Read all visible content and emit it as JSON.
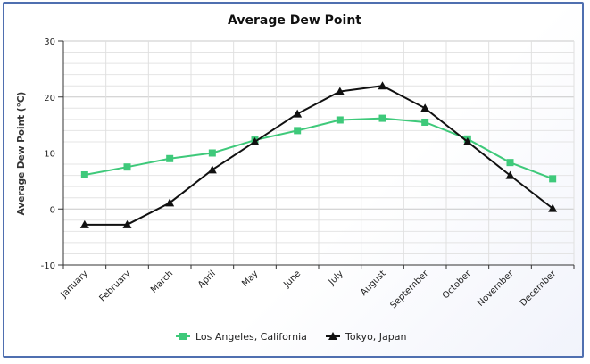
{
  "chart_data": {
    "type": "line",
    "title": "Average Dew Point",
    "xlabel": "",
    "ylabel": "Average Dew Point (°C)",
    "categories": [
      "January",
      "February",
      "March",
      "April",
      "May",
      "June",
      "July",
      "August",
      "September",
      "October",
      "November",
      "December"
    ],
    "ylim": [
      -10,
      30
    ],
    "yticks": [
      -10,
      0,
      10,
      20,
      30
    ],
    "grid": true,
    "legend_position": "bottom",
    "series": [
      {
        "name": "Los Angeles, California",
        "color": "#3ec97a",
        "marker": "square",
        "values": [
          6.1,
          7.5,
          9.0,
          10.0,
          12.3,
          14.0,
          15.9,
          16.2,
          15.5,
          12.5,
          8.3,
          5.4
        ]
      },
      {
        "name": "Tokyo, Japan",
        "color": "#111111",
        "marker": "triangle",
        "values": [
          -2.8,
          -2.8,
          1.1,
          7.0,
          12.0,
          17.0,
          21.0,
          22.0,
          18.0,
          12.0,
          6.0,
          0.1
        ]
      }
    ]
  }
}
